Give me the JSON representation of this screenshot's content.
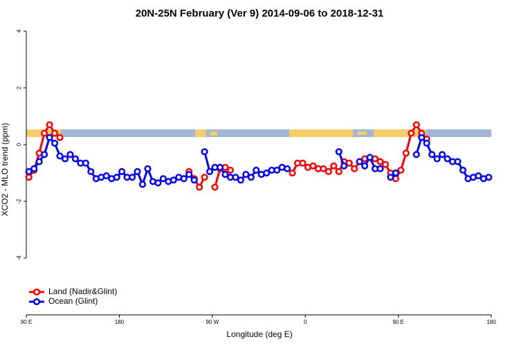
{
  "chart_data": {
    "type": "line",
    "title": "20N-25N February (Ver 9)   2014-09-06 to 2018-12-31",
    "xlabel": "Longitude (deg E)",
    "ylabel": "XCO2 - MLO trend (ppm)",
    "x": [
      92.5,
      97.5,
      102.5,
      107.5,
      112.5,
      117.5,
      122.5,
      127.5,
      132.5,
      137.5,
      142.5,
      147.5,
      152.5,
      157.5,
      162.5,
      167.5,
      172.5,
      177.5,
      182.5,
      187.5,
      192.5,
      197.5,
      202.5,
      207.5,
      212.5,
      217.5,
      222.5,
      227.5,
      232.5,
      237.5,
      242.5,
      247.5,
      252.5,
      257.5,
      262.5,
      267.5,
      272.5,
      277.5,
      282.5,
      287.5,
      292.5,
      297.5,
      302.5,
      307.5,
      312.5,
      317.5,
      322.5,
      327.5,
      332.5,
      337.5,
      342.5,
      347.5,
      352.5,
      357.5,
      362.5,
      367.5,
      372.5,
      377.5,
      382.5,
      387.5,
      392.5,
      397.5,
      402.5,
      407.5,
      412.5,
      417.5,
      422.5,
      427.5,
      432.5,
      437.5,
      442.5,
      447.5,
      452.5,
      457.5,
      462.5,
      467.5,
      472.5,
      477.5,
      482.5,
      487.5,
      492.5,
      497.5,
      502.5,
      507.5,
      512.5,
      517.5,
      522.5,
      527.5,
      532.5,
      537.5
    ],
    "series": [
      {
        "name": "Land (Nadir&Glint)",
        "color": "#ff0000",
        "values": [
          -1.15,
          -0.9,
          -0.3,
          0.4,
          0.7,
          0.4,
          0.25,
          null,
          null,
          null,
          null,
          null,
          null,
          null,
          null,
          null,
          null,
          null,
          null,
          null,
          null,
          null,
          null,
          null,
          null,
          null,
          null,
          null,
          null,
          null,
          null,
          -0.95,
          -1.2,
          -1.5,
          -1.15,
          null,
          -1.5,
          -0.85,
          -0.8,
          -0.9,
          null,
          null,
          null,
          null,
          null,
          null,
          null,
          null,
          null,
          null,
          null,
          -1.0,
          -0.65,
          -0.65,
          -0.8,
          -0.75,
          -0.85,
          -0.85,
          -0.95,
          -0.75,
          -0.95,
          -0.6,
          -0.65,
          -0.85,
          -0.6,
          -0.5,
          null,
          -0.5,
          -0.6,
          -0.7,
          -1.0,
          -1.2,
          -0.9,
          -0.3,
          0.4,
          0.7,
          0.4,
          0.2,
          null,
          null,
          null,
          null,
          null,
          null,
          null,
          null,
          null,
          null,
          null,
          null
        ]
      },
      {
        "name": "Ocean (Glint)",
        "color": "#0000ff",
        "values": [
          -0.95,
          -0.85,
          -0.6,
          -0.35,
          0.25,
          0.05,
          -0.4,
          -0.5,
          -0.35,
          -0.5,
          -0.65,
          -0.65,
          -0.95,
          -1.2,
          -1.15,
          -1.1,
          -1.2,
          -1.15,
          -0.95,
          -1.15,
          -1.15,
          -0.95,
          -1.4,
          -0.85,
          -1.3,
          -1.35,
          -1.2,
          -1.3,
          -1.25,
          -1.15,
          -1.2,
          -1.05,
          -1.25,
          null,
          -0.25,
          -0.95,
          -0.8,
          -0.8,
          -1.05,
          -1.15,
          -1.15,
          -1.25,
          -1.05,
          -1.15,
          -0.9,
          -1.05,
          -1.0,
          -0.9,
          -0.9,
          -0.8,
          -0.85,
          null,
          null,
          null,
          null,
          null,
          null,
          null,
          null,
          null,
          -0.25,
          -0.75,
          null,
          null,
          -0.6,
          -0.75,
          -0.45,
          -0.85,
          -0.85,
          null,
          -1.15,
          -1.0,
          null,
          null,
          null,
          -0.35,
          0.25,
          0.05,
          -0.35,
          -0.5,
          -0.35,
          -0.5,
          -0.6,
          -0.6,
          -0.9,
          -1.2,
          -1.15,
          -1.1,
          -1.2,
          -1.15
        ]
      }
    ],
    "xlim": [
      90,
      540
    ],
    "xticks": [
      {
        "value": 90,
        "label": "90 E"
      },
      180,
      {
        "value": 270,
        "label": "90 W"
      },
      {
        "value": 360,
        "label": "0"
      },
      {
        "value": 450,
        "label": "90 E"
      },
      {
        "value": 540,
        "label": "180"
      }
    ],
    "ylim": [
      -6,
      4.2
    ],
    "yticks": [
      -4,
      -2,
      0,
      2,
      4
    ],
    "legend": "bottomleft"
  }
}
